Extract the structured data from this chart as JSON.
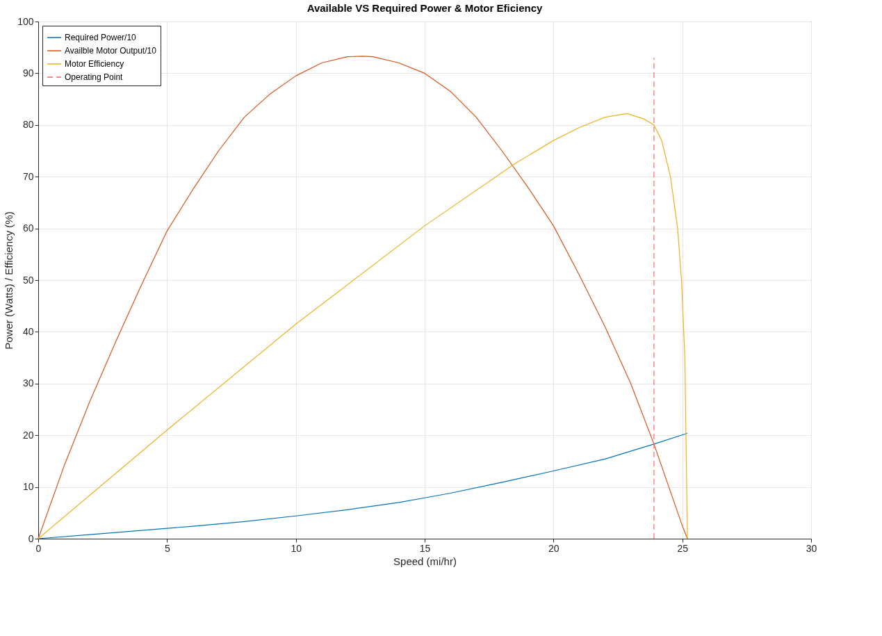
{
  "chart_data": {
    "type": "line",
    "title": "Available VS Required Power & Motor Eficiency",
    "xlabel": "Speed (mi/hr)",
    "ylabel": "Power (Watts) / Efficiency (%)",
    "xlim": [
      0,
      30
    ],
    "xticks": [
      0,
      5,
      10,
      15,
      20,
      25,
      30
    ],
    "ylim": [
      0,
      100
    ],
    "yticks": [
      0,
      10,
      20,
      30,
      40,
      50,
      60,
      70,
      80,
      90,
      100
    ],
    "grid": true,
    "legend": "top left",
    "line_style": "solid",
    "series": [
      {
        "name": "Required Power/10",
        "color": "#0072bd",
        "x": [
          0,
          2,
          4,
          5,
          6,
          8,
          10,
          12,
          14,
          15,
          16,
          18,
          20,
          22,
          23.9,
          25.2
        ],
        "values": [
          0,
          0.8,
          1.6,
          2,
          2.4,
          3.3,
          4.4,
          5.6,
          7.0,
          7.9,
          8.8,
          10.9,
          13.1,
          15.4,
          18.3,
          20.4
        ]
      },
      {
        "name": "Availble Motor Output/10",
        "color": "#d95319",
        "x": [
          0,
          1,
          2,
          3,
          4,
          5,
          6,
          7,
          8,
          9,
          10,
          11,
          12,
          12.6,
          13,
          14,
          15,
          16,
          17,
          18,
          19,
          20,
          21,
          22,
          23,
          23.9,
          25,
          25.2
        ],
        "values": [
          0,
          14,
          26.5,
          38,
          49,
          59.5,
          67.5,
          75,
          81.5,
          86,
          89.5,
          92,
          93.2,
          93.3,
          93.2,
          92,
          90,
          86.5,
          81.5,
          75,
          68,
          60.5,
          51,
          41,
          30,
          18.3,
          2.5,
          0
        ]
      },
      {
        "name": "Motor Efficiency",
        "color": "#edb120",
        "x": [
          0,
          5,
          10,
          15,
          18.5,
          20,
          21,
          22,
          22.85,
          23.5,
          23.9,
          24.2,
          24.54,
          24.82,
          24.97,
          25.1,
          25.2
        ],
        "values": [
          0,
          21,
          41.5,
          60.5,
          72.5,
          77,
          79.5,
          81.5,
          82.2,
          81.2,
          80,
          77,
          70,
          60,
          50,
          35,
          0
        ]
      },
      {
        "name": "Operating Point",
        "color": "#ff6666",
        "line_style": "dashed",
        "x": [
          23.9,
          23.9
        ],
        "values": [
          0,
          93
        ]
      }
    ]
  }
}
